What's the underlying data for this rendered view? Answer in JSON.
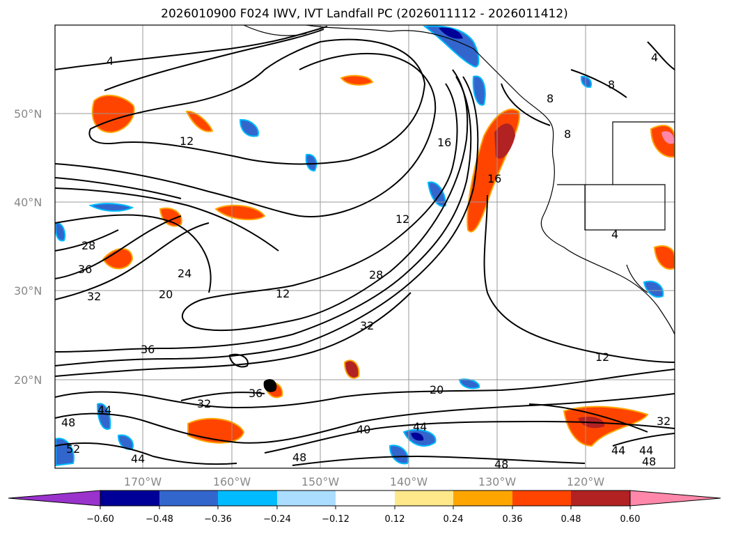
{
  "title": "2026010900 F024 IWV, IVT Landfall PC (2026011112 - 2026011412)",
  "map": {
    "lat_labels": [
      "50°N",
      "40°N",
      "30°N",
      "20°N"
    ],
    "lon_labels": [
      "170°W",
      "160°W",
      "150°W",
      "140°W",
      "130°W",
      "120°W"
    ],
    "contour_labels": [
      "4",
      "12",
      "8",
      "16",
      "16",
      "12",
      "28",
      "36",
      "24",
      "20",
      "32",
      "12",
      "28",
      "32",
      "36",
      "20",
      "12",
      "36",
      "32",
      "44",
      "48",
      "52",
      "44",
      "40",
      "44",
      "48",
      "48",
      "32",
      "44",
      "44",
      "48",
      "8",
      "4",
      "4",
      "8"
    ]
  },
  "colorbar": {
    "ticks": [
      "−0.60",
      "−0.48",
      "−0.36",
      "−0.24",
      "−0.12",
      "0.12",
      "0.24",
      "0.36",
      "0.48",
      "0.60"
    ],
    "colors": [
      "#9933cc",
      "#000099",
      "#3366cc",
      "#00bbff",
      "#aaddff",
      "#ffffff",
      "#ffe88a",
      "#ffa500",
      "#ff4400",
      "#b22222",
      "#ff88aa"
    ]
  },
  "colors": {
    "contour": "#000000",
    "coast": "#000000",
    "grid": "#999999"
  }
}
